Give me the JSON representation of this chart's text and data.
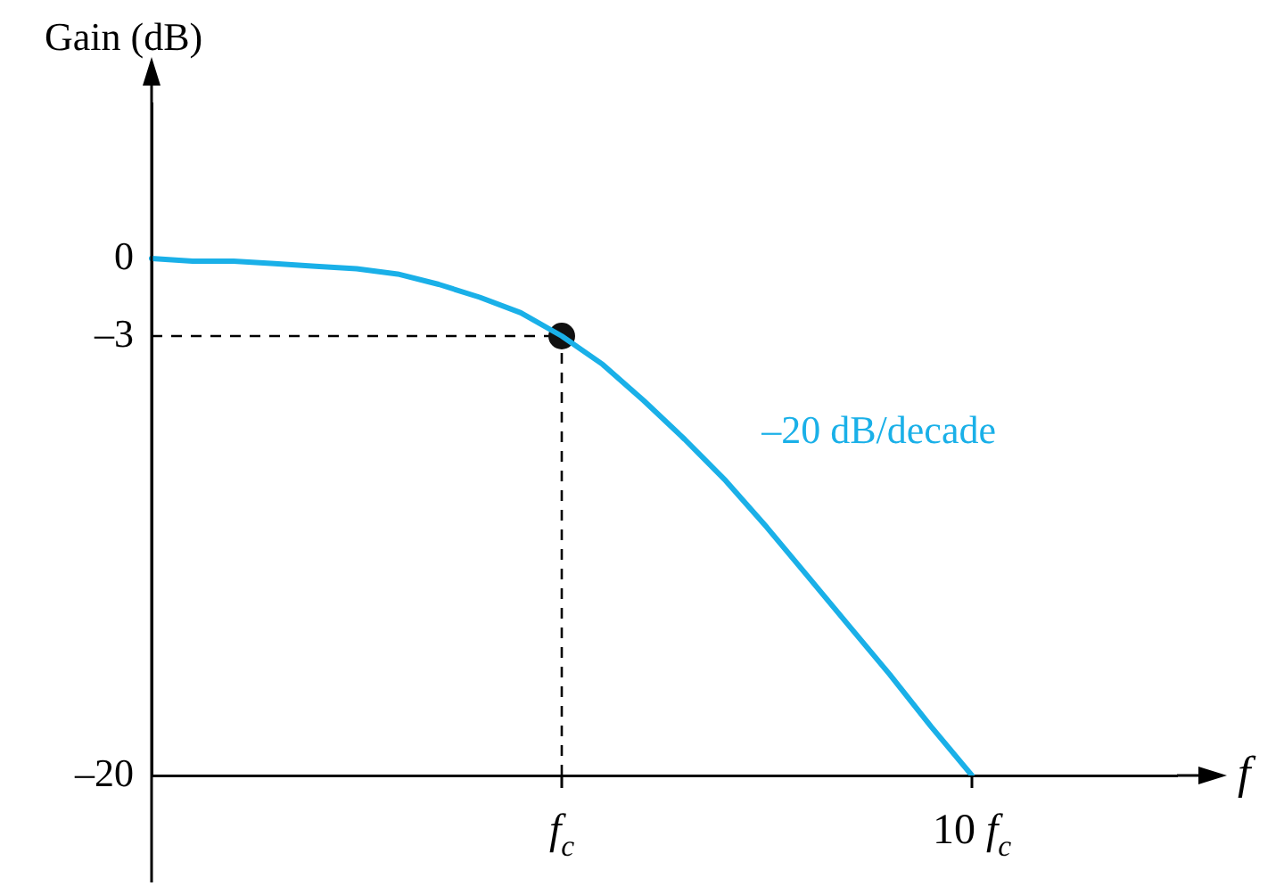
{
  "chart_data": {
    "type": "line",
    "ylabel": "Gain (dB)",
    "xlabel": "f",
    "categories": [
      null,
      null,
      null,
      null,
      null,
      null,
      null,
      null,
      null,
      null,
      "f$_{c}$",
      null,
      null,
      null,
      null,
      null,
      null,
      null,
      null,
      null,
      "10 f$_{c}$",
      null,
      null,
      null,
      null,
      null
    ],
    "series": [
      {
        "color": "#1ab0e8",
        "marker": "none",
        "values": [
          0,
          -0.1,
          -0.1,
          -0.2,
          -0.3,
          -0.4,
          -0.6,
          -1,
          -1.5,
          -2.1,
          -3,
          -4.1,
          -5.5,
          -7,
          -8.6,
          -10.4,
          -12.3,
          -14.2,
          -16.1,
          -18.1,
          -20,
          null,
          null,
          null,
          null,
          null
        ]
      },
      {
        "type": "scatter",
        "color": "#111111",
        "marker": "circle",
        "x": [
          "f$_{c}$"
        ],
        "values": [
          -3
        ]
      }
    ],
    "ylim": [
      -20,
      6
    ],
    "yticks": [
      {
        "value": -20,
        "label": "–20"
      },
      {
        "value": -3,
        "label": "–3"
      },
      0
    ],
    "ref_lines": [
      {
        "axis": "y",
        "value": -3,
        "color": "#000000",
        "line_style": "dashed"
      },
      {
        "axis": "x",
        "value": "f$_{c}$",
        "color": "#000000",
        "line_style": "dashed"
      }
    ],
    "annotations": [
      "–20 dB/decade"
    ],
    "grid": false,
    "legend": false
  }
}
